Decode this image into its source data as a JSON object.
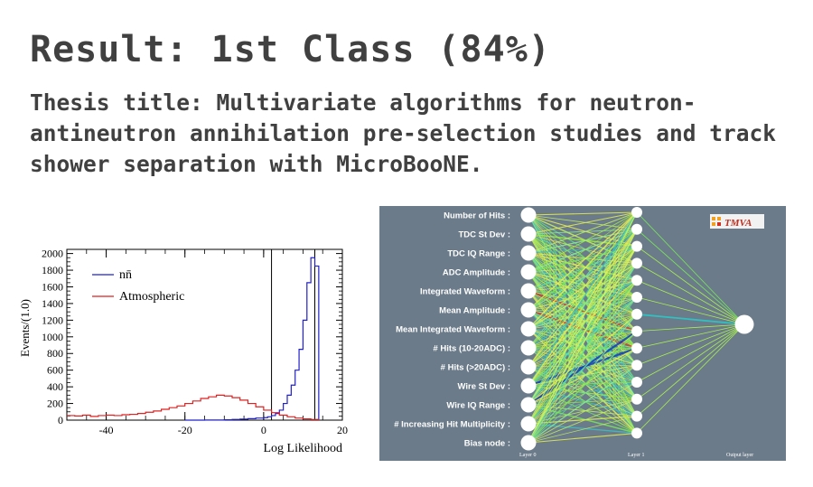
{
  "heading": {
    "result": "Result: 1st Class (84%)",
    "thesis": "Thesis title: Multivariate algorithms for neutron-antineutron annihilation pre-selection studies and track shower separation with MicroBooNE."
  },
  "chart_data": {
    "type": "line",
    "ylabel": "Events/(1.0)",
    "xlabel": "Log Likelihood",
    "xlim": [
      -50,
      20
    ],
    "ylim": [
      0,
      2050
    ],
    "xticks": [
      -40,
      -20,
      0,
      20
    ],
    "yticks": [
      0,
      200,
      400,
      600,
      800,
      1000,
      1200,
      1400,
      1600,
      1800,
      2000
    ],
    "legend_position": "top-left",
    "vlines": [
      2,
      13
    ],
    "colors": {
      "nnbar": "#2020cc",
      "atmospheric": "#dd2222"
    },
    "series": [
      {
        "name": "nn̄",
        "x": [
          -20,
          -15,
          -10,
          -8,
          -6,
          -4,
          -2,
          0,
          1,
          2,
          3,
          4,
          5,
          6,
          7,
          8,
          9,
          10,
          11,
          12,
          13,
          14
        ],
        "values": [
          0,
          2,
          5,
          8,
          12,
          18,
          25,
          30,
          40,
          55,
          80,
          120,
          200,
          300,
          420,
          600,
          850,
          1200,
          1650,
          1950,
          1850,
          0
        ]
      },
      {
        "name": "Atmospheric",
        "x": [
          -50,
          -48,
          -46,
          -44,
          -42,
          -40,
          -38,
          -36,
          -34,
          -32,
          -30,
          -28,
          -26,
          -24,
          -22,
          -20,
          -18,
          -16,
          -14,
          -12,
          -10,
          -8,
          -6,
          -4,
          -2,
          0,
          2,
          4,
          6,
          8,
          10,
          12,
          14
        ],
        "values": [
          55,
          50,
          60,
          45,
          55,
          60,
          55,
          65,
          70,
          80,
          95,
          110,
          130,
          150,
          170,
          200,
          230,
          260,
          280,
          300,
          290,
          270,
          240,
          200,
          160,
          120,
          90,
          60,
          40,
          25,
          15,
          8,
          0
        ]
      }
    ]
  },
  "network": {
    "inputs": [
      "Number of Hits :",
      "TDC St Dev :",
      "TDC IQ Range :",
      "ADC Amplitude :",
      "Integrated Waveform :",
      "Mean Amplitude :",
      "Mean Integrated Waveform :",
      "# Hits (10-20ADC) :",
      "# Hits (>20ADC) :",
      "Wire St Dev :",
      "Wire IQ Range :",
      "# Increasing Hit Multiplicity :",
      "Bias node :"
    ],
    "layer_labels": [
      "Layer 0",
      "Layer 1",
      "Output layer"
    ],
    "logo": "TMVA",
    "hidden_nodes": 14,
    "colors": {
      "background": "#6b7b8a",
      "bias_label": "#a8d8f0"
    }
  }
}
